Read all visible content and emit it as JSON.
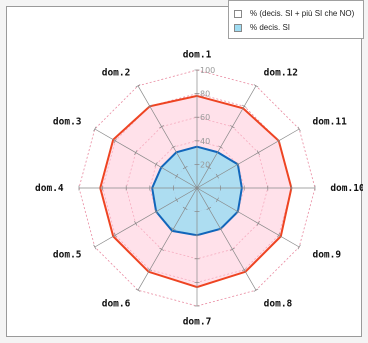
{
  "chart_data": {
    "type": "radar",
    "categories": [
      "dom.1",
      "dom.12",
      "dom.11",
      "dom.10",
      "dom.9",
      "dom.8",
      "dom.7",
      "dom.6",
      "dom.5",
      "dom.4",
      "dom.3",
      "dom.2"
    ],
    "series": [
      {
        "name": "% (decis. SI + più SI che NO)",
        "values": [
          78,
          78,
          80,
          80,
          82,
          82,
          84,
          82,
          82,
          82,
          82,
          80
        ],
        "stroke": "#ee4422",
        "fill": "#ffc8d8"
      },
      {
        "name": "% decis. SI",
        "values": [
          35,
          35,
          40,
          38,
          40,
          40,
          40,
          42,
          40,
          38,
          35,
          35
        ],
        "stroke": "#1166bb",
        "fill": "#9fdcf2"
      }
    ],
    "rlim": [
      0,
      100
    ],
    "tick_labels": [
      "20",
      "40",
      "60",
      "80",
      "100"
    ],
    "grid": true,
    "grid_color": "#e98aa0",
    "axis_color": "#888888",
    "legend_position": "top-right"
  }
}
